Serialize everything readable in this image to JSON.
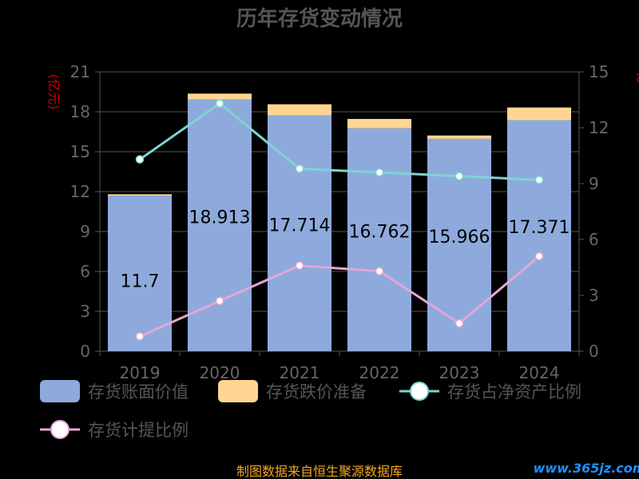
{
  "chart_data": {
    "type": "bar",
    "title": "历年存货变动情况",
    "categories": [
      "2019",
      "2020",
      "2021",
      "2022",
      "2023",
      "2024"
    ],
    "y_left": {
      "label": "(亿元)",
      "ticks": [
        "0",
        "3",
        "6",
        "9",
        "12",
        "15",
        "18",
        "21"
      ],
      "range": [
        0,
        21
      ]
    },
    "y_right": {
      "label": "%",
      "ticks": [
        "0",
        "3",
        "6",
        "9",
        "12",
        "15"
      ],
      "range": [
        0,
        15
      ]
    },
    "series": [
      {
        "name": "存货账面价值",
        "kind": "bar",
        "axis": "left",
        "color": "#8eaadc",
        "values": [
          11.7,
          18.913,
          17.714,
          16.762,
          15.966,
          17.371
        ],
        "labels": [
          "11.7",
          "18.913",
          "17.714",
          "16.762",
          "15.966",
          "17.371"
        ]
      },
      {
        "name": "存货跌价准备",
        "kind": "bar-stacked",
        "axis": "left",
        "color": "#ffd591",
        "values": [
          0.1,
          0.45,
          0.85,
          0.7,
          0.25,
          0.95
        ]
      },
      {
        "name": "存货占净资产比例",
        "kind": "line",
        "axis": "right",
        "color": "#7fd3d3",
        "values": [
          10.3,
          13.3,
          9.8,
          9.6,
          9.4,
          9.2
        ]
      },
      {
        "name": "存货计提比例",
        "kind": "line",
        "axis": "right",
        "color": "#e3a6d6",
        "values": [
          0.8,
          2.7,
          4.6,
          4.3,
          1.5,
          5.1
        ]
      }
    ],
    "grid": true,
    "legend_position": "bottom"
  },
  "footer": {
    "source": "制图数据来自恒生聚源数据库",
    "watermark": "www.365jz.com"
  }
}
